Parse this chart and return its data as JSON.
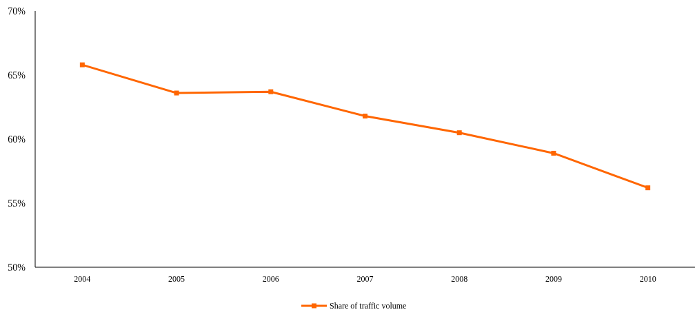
{
  "chart_data": {
    "type": "line",
    "categories": [
      "2004",
      "2005",
      "2006",
      "2007",
      "2008",
      "2009",
      "2010"
    ],
    "series": [
      {
        "name": "Share of traffic volume",
        "color": "#ff6600",
        "values": [
          65.8,
          63.6,
          63.7,
          61.8,
          60.5,
          58.9,
          56.2
        ]
      }
    ],
    "ylim": [
      50,
      70
    ],
    "yticks": [
      {
        "value": 50,
        "label": "50%"
      },
      {
        "value": 55,
        "label": "55%"
      },
      {
        "value": 60,
        "label": "60%"
      },
      {
        "value": 65,
        "label": "65%"
      },
      {
        "value": 70,
        "label": "70%"
      }
    ],
    "legend": "bottom",
    "marker": "square",
    "line_style": "solid",
    "grid": false
  }
}
